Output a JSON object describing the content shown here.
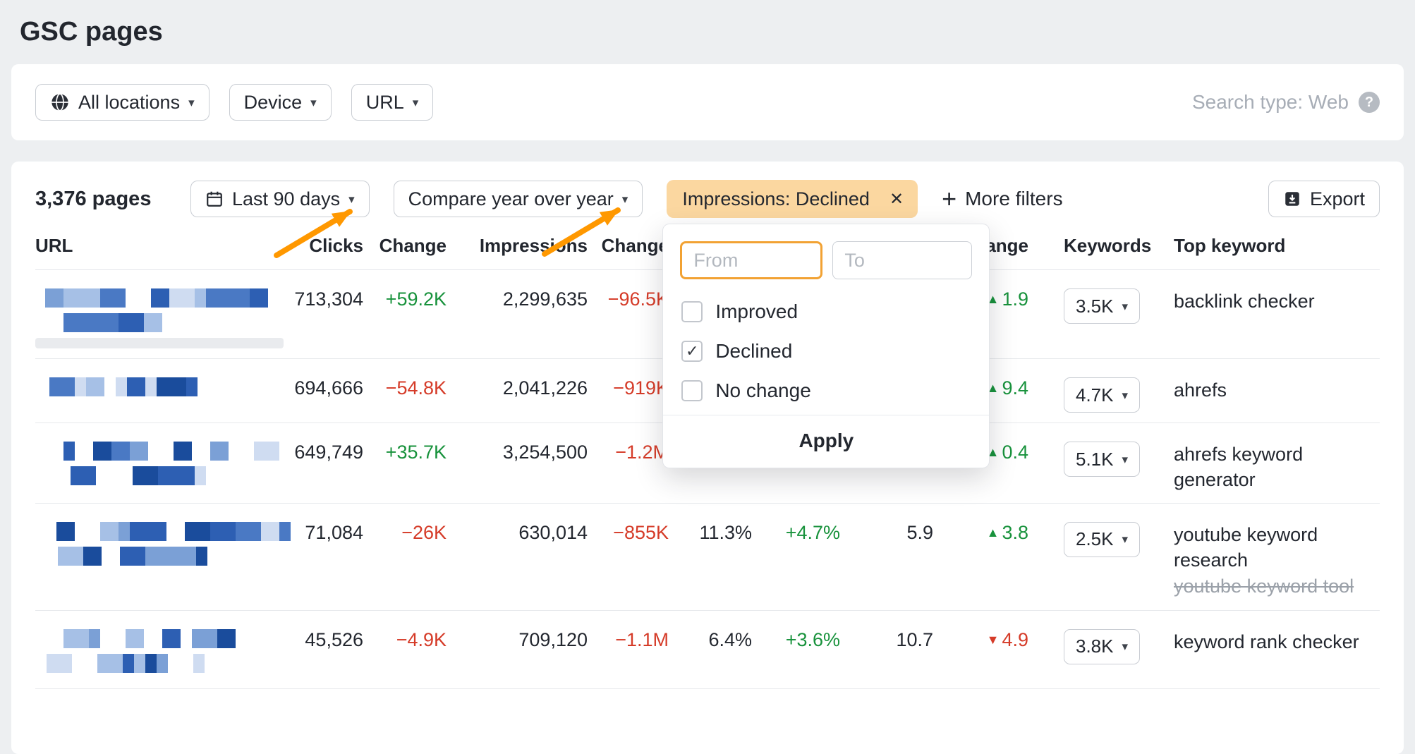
{
  "page": {
    "title": "GSC pages"
  },
  "icons": {
    "caret": "▾",
    "close": "✕",
    "plus": "+",
    "help": "?",
    "check": "✓",
    "up": "▲",
    "down": "▼"
  },
  "toolbar": {
    "location_label": "All locations",
    "device_label": "Device",
    "url_label": "URL",
    "search_type_label": "Search type: Web"
  },
  "controls": {
    "pages_count": "3,376 pages",
    "date_range_label": "Last 90 days",
    "compare_label": "Compare year over year",
    "active_filter_label": "Impressions: Declined",
    "more_filters_label": "More filters",
    "export_label": "Export"
  },
  "filter_popup": {
    "from_placeholder": "From",
    "to_placeholder": "To",
    "options": [
      {
        "label": "Improved",
        "checked": false
      },
      {
        "label": "Declined",
        "checked": true
      },
      {
        "label": "No change",
        "checked": false
      }
    ],
    "apply_label": "Apply"
  },
  "table": {
    "headers": {
      "url": "URL",
      "clicks": "Clicks",
      "clicks_change": "Change",
      "impressions": "Impressions",
      "impressions_change": "Change",
      "ctr": "",
      "ctr_change": "",
      "position": "",
      "position_change": "Change",
      "keywords": "Keywords",
      "top_keyword": "Top keyword"
    },
    "rows": [
      {
        "url_mosaic": {
          "lines": [
            [
              300,
              14
            ],
            [
              130,
              40
            ]
          ],
          "bar": true
        },
        "clicks": "713,304",
        "clicks_change": {
          "text": "+59.2K",
          "color": "green"
        },
        "impressions": "2,299,635",
        "impressions_change": {
          "text": "−96.5K",
          "color": "red"
        },
        "ctr": "",
        "ctr_change": "",
        "position": "",
        "position_change": {
          "dir": "up",
          "text": "1.9",
          "color": "green"
        },
        "keywords_label": "3.5K",
        "top_keyword": "backlink checker",
        "top_keyword_alt": null
      },
      {
        "url_mosaic": {
          "lines": [
            [
              210,
              20
            ]
          ],
          "bar": false
        },
        "clicks": "694,666",
        "clicks_change": {
          "text": "−54.8K",
          "color": "red"
        },
        "impressions": "2,041,226",
        "impressions_change": {
          "text": "−919K",
          "color": "red"
        },
        "ctr": "",
        "ctr_change": "",
        "position": "",
        "position_change": {
          "dir": "up",
          "text": "9.4",
          "color": "green"
        },
        "keywords_label": "4.7K",
        "top_keyword": "ahrefs",
        "top_keyword_alt": null
      },
      {
        "url_mosaic": {
          "lines": [
            [
              300,
              40
            ],
            [
              180,
              50
            ]
          ],
          "bar": false
        },
        "clicks": "649,749",
        "clicks_change": {
          "text": "+35.7K",
          "color": "green"
        },
        "impressions": "3,254,500",
        "impressions_change": {
          "text": "−1.2M",
          "color": "red"
        },
        "ctr": "",
        "ctr_change": "",
        "position": "",
        "position_change": {
          "dir": "up",
          "text": "0.4",
          "color": "green"
        },
        "keywords_label": "5.1K",
        "top_keyword": "ahrefs keyword generator",
        "top_keyword_alt": null
      },
      {
        "url_mosaic": {
          "lines": [
            [
              330,
              30
            ],
            [
              260,
              6
            ]
          ],
          "bar": false
        },
        "clicks": "71,084",
        "clicks_change": {
          "text": "−26K",
          "color": "red"
        },
        "impressions": "630,014",
        "impressions_change": {
          "text": "−855K",
          "color": "red"
        },
        "ctr": "11.3%",
        "ctr_change": {
          "text": "+4.7%",
          "color": "green"
        },
        "position": "5.9",
        "position_change": {
          "dir": "up",
          "text": "3.8",
          "color": "green"
        },
        "keywords_label": "2.5K",
        "top_keyword": "youtube keyword research",
        "top_keyword_alt": "youtube keyword tool"
      },
      {
        "url_mosaic": {
          "lines": [
            [
              270,
              40
            ],
            [
              210,
              16
            ]
          ],
          "bar": false
        },
        "clicks": "45,526",
        "clicks_change": {
          "text": "−4.9K",
          "color": "red"
        },
        "impressions": "709,120",
        "impressions_change": {
          "text": "−1.1M",
          "color": "red"
        },
        "ctr": "6.4%",
        "ctr_change": {
          "text": "+3.6%",
          "color": "green"
        },
        "position": "10.7",
        "position_change": {
          "dir": "down",
          "text": "4.9",
          "color": "red"
        },
        "keywords_label": "3.8K",
        "top_keyword": "keyword rank checker",
        "top_keyword_alt": null
      }
    ]
  },
  "colors": {
    "chip_bg": "#fbd7a0",
    "accent_orange": "#f2a233",
    "arrow_orange": "#ff9800",
    "positive_green": "#18923c",
    "negative_red": "#d53b28"
  }
}
